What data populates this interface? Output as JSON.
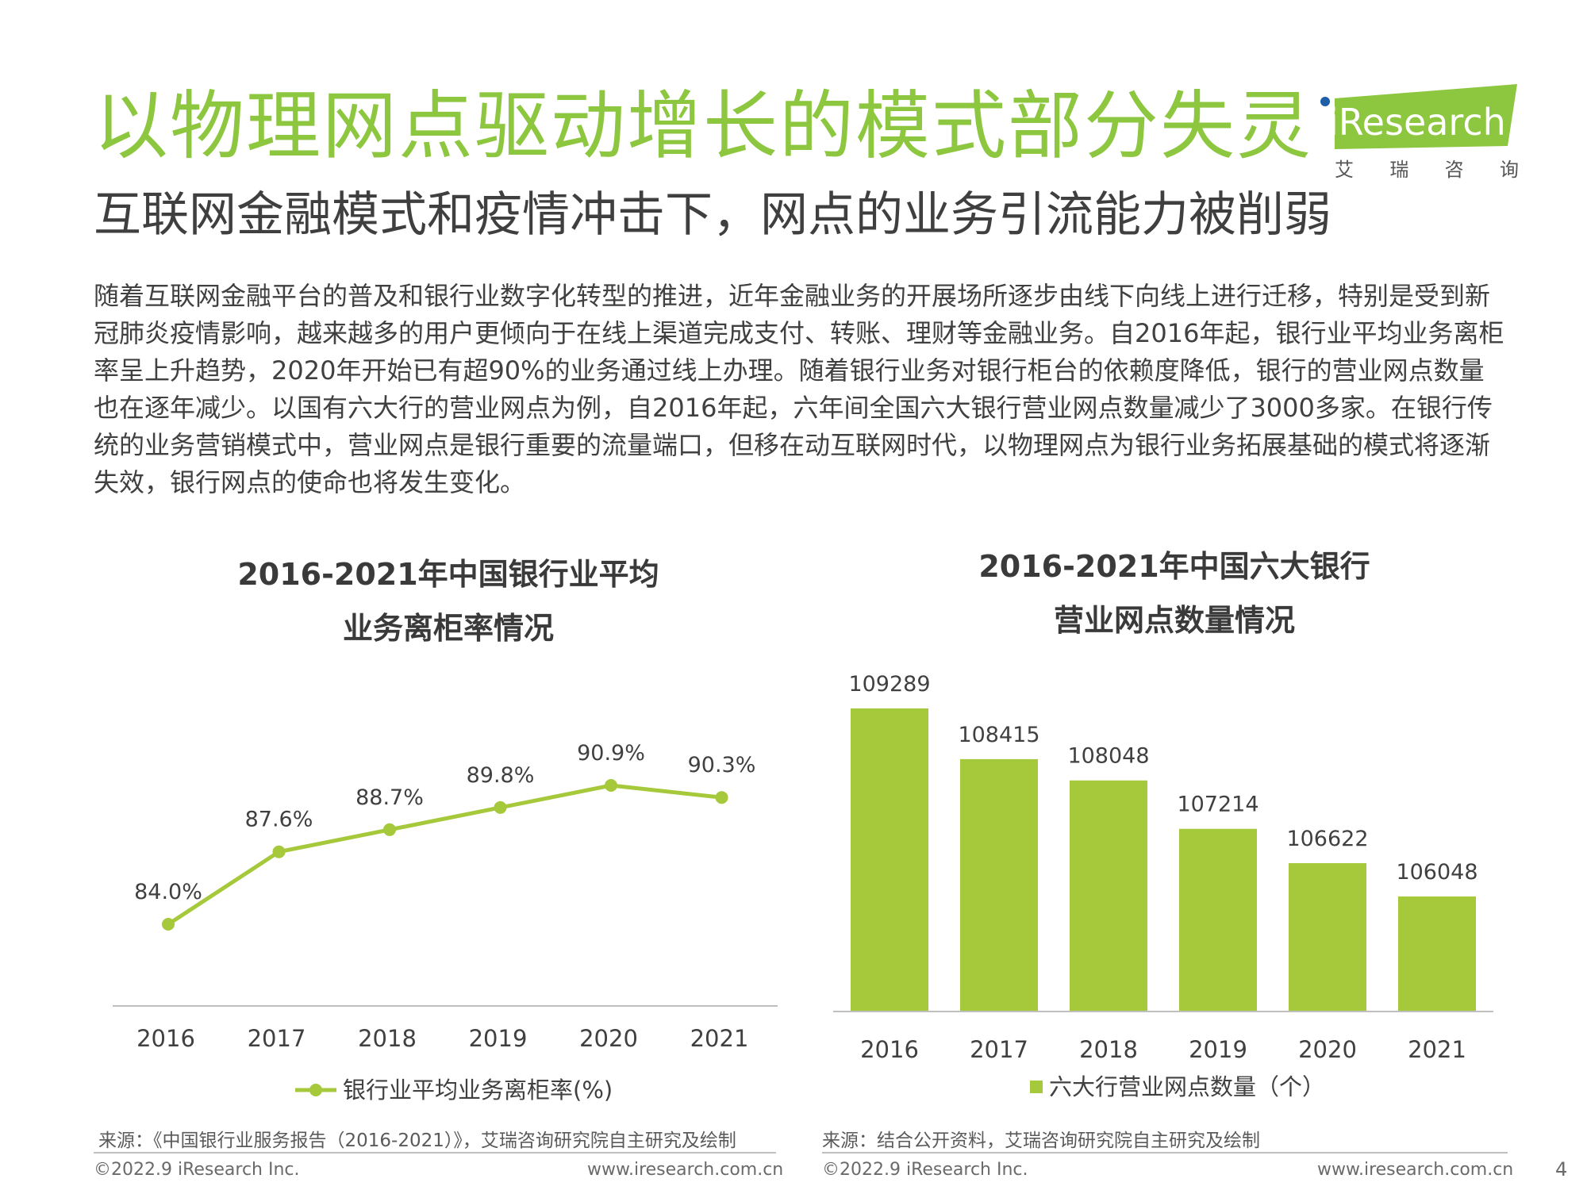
{
  "title": "以物理网点驱动增长的模式部分失灵",
  "subtitle": "互联网金融模式和疫情冲击下，网点的业务引流能力被削弱",
  "logo": {
    "brand": "iResearch",
    "chinese": "艾 瑞 咨 询"
  },
  "body_text": "随着互联网金融平台的普及和银行业数字化转型的推进，近年金融业务的开展场所逐步由线下向线上进行迁移，特别是受到新冠肺炎疫情影响，越来越多的用户更倾向于在线上渠道完成支付、转账、理财等金融业务。自2016年起，银行业平均业务离柜率呈上升趋势，2020年开始已有超90%的业务通过线上办理。随着银行业务对银行柜台的依赖度降低，银行的营业网点数量也在逐年减少。以国有六大行的营业网点为例，自2016年起，六年间全国六大银行营业网点数量减少了3000多家。在银行传统的业务营销模式中，营业网点是银行重要的流量端口，但移在动互联网时代，以物理网点为银行业务拓展基础的模式将逐渐失效，银行网点的使命也将发生变化。",
  "chart_data": [
    {
      "type": "line",
      "title_line1": "2016-2021年中国银行业平均",
      "title_line2": "业务离柜率情况",
      "categories": [
        "2016",
        "2017",
        "2018",
        "2019",
        "2020",
        "2021"
      ],
      "series": [
        {
          "name": "银行业平均业务离柜率(%)",
          "values": [
            84.0,
            87.6,
            88.7,
            89.8,
            90.9,
            90.3
          ],
          "labels": [
            "84.0%",
            "87.6%",
            "88.7%",
            "89.8%",
            "90.9%",
            "90.3%"
          ],
          "color": "#a5c93a"
        }
      ],
      "grid": false
    },
    {
      "type": "bar",
      "title_line1": "2016-2021年中国六大银行",
      "title_line2": "营业网点数量情况",
      "categories": [
        "2016",
        "2017",
        "2018",
        "2019",
        "2020",
        "2021"
      ],
      "series": [
        {
          "name": "六大行营业网点数量（个）",
          "values": [
            109289,
            108415,
            108048,
            107214,
            106622,
            106048
          ],
          "color": "#a5c93a"
        }
      ],
      "grid": false
    }
  ],
  "sources": {
    "left": "来源：《中国银行业服务报告（2016-2021）》，艾瑞咨询研究院自主研究及绘制",
    "right": "来源：结合公开资料，艾瑞咨询研究院自主研究及绘制"
  },
  "footer": {
    "copyright_left": "©2022.9 iResearch Inc.",
    "url_left": "www.iresearch.com.cn",
    "copyright_right": "©2022.9 iResearch Inc.",
    "url_right": "www.iresearch.com.cn",
    "page_number": "4"
  }
}
